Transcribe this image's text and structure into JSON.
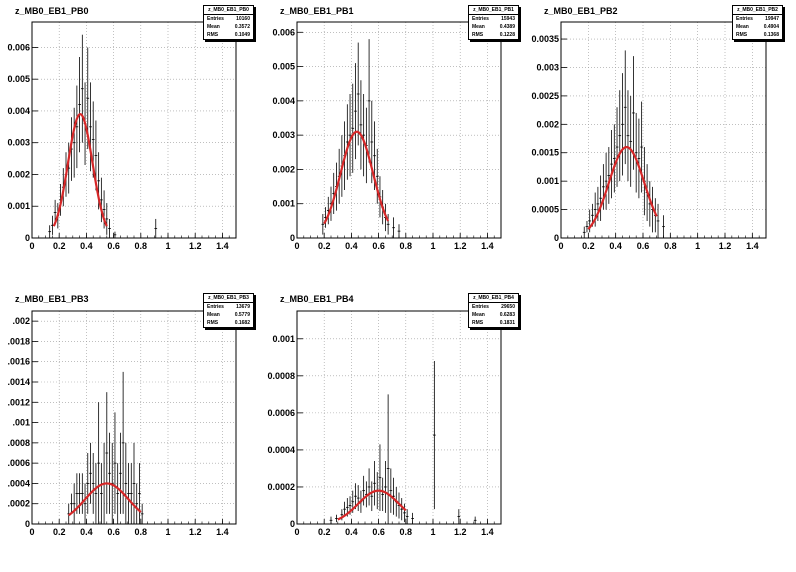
{
  "chart_data": [
    {
      "type": "histogram",
      "title": "z_MB0_EB1_PB0",
      "stats": {
        "name": "z_MB0_EB1_PB0",
        "entries": "10160",
        "mean": "0.3572",
        "rms": "0.1049"
      },
      "xlim": [
        0,
        1.5
      ],
      "ylim": [
        0,
        0.0068
      ],
      "xticks": [
        0,
        0.2,
        0.4,
        0.6,
        0.8,
        1,
        1.2,
        1.4
      ],
      "xticklabels": [
        "0",
        "0.2",
        "0.4",
        "0.6",
        "0.8",
        "1",
        "1.2",
        "1.4"
      ],
      "yticks": [
        0.001,
        0.002,
        0.003,
        0.004,
        0.005,
        0.006
      ],
      "yticklabels": [
        "0.001",
        "0.002",
        "0.003",
        "0.004",
        "0.005",
        "0.006"
      ],
      "bins": [
        [
          0.13,
          0.0002
        ],
        [
          0.15,
          0.0004
        ],
        [
          0.17,
          0.0008
        ],
        [
          0.19,
          0.0007
        ],
        [
          0.21,
          0.0012
        ],
        [
          0.23,
          0.0016
        ],
        [
          0.25,
          0.002
        ],
        [
          0.27,
          0.0022
        ],
        [
          0.29,
          0.0028
        ],
        [
          0.31,
          0.003
        ],
        [
          0.33,
          0.0035
        ],
        [
          0.35,
          0.0042
        ],
        [
          0.37,
          0.0047
        ],
        [
          0.39,
          0.0036
        ],
        [
          0.41,
          0.0044
        ],
        [
          0.43,
          0.0035
        ],
        [
          0.45,
          0.0031
        ],
        [
          0.47,
          0.0026
        ],
        [
          0.49,
          0.0018
        ],
        [
          0.51,
          0.0012
        ],
        [
          0.53,
          0.0009
        ],
        [
          0.55,
          0.0006
        ],
        [
          0.57,
          0.0003
        ],
        [
          0.61,
          0.0001
        ],
        [
          0.91,
          0.0003
        ]
      ],
      "errors": [
        0.0002,
        0.0003,
        0.0004,
        0.0004,
        0.0005,
        0.0006,
        0.0007,
        0.0008,
        0.001,
        0.0011,
        0.0013,
        0.0015,
        0.0017,
        0.0013,
        0.0016,
        0.0014,
        0.0012,
        0.0011,
        0.0009,
        0.0007,
        0.0006,
        0.0005,
        0.0003,
        0.0001,
        0.0003
      ],
      "fit": {
        "amp": 0.0039,
        "mean": 0.355,
        "sigma": 0.09,
        "xmin": 0.16,
        "xmax": 0.55
      }
    },
    {
      "type": "histogram",
      "title": "z_MB0_EB1_PB1",
      "stats": {
        "name": "z_MB0_EB1_PB1",
        "entries": "15943",
        "mean": "0.4389",
        "rms": "0.1228"
      },
      "xlim": [
        0,
        1.5
      ],
      "ylim": [
        0,
        0.0063
      ],
      "xticks": [
        0,
        0.2,
        0.4,
        0.6,
        0.8,
        1,
        1.2,
        1.4
      ],
      "xticklabels": [
        "0",
        "0.2",
        "0.4",
        "0.6",
        "0.8",
        "1",
        "1.2",
        "1.4"
      ],
      "yticks": [
        0.001,
        0.002,
        0.003,
        0.004,
        0.005,
        0.006
      ],
      "yticklabels": [
        "0.001",
        "0.002",
        "0.003",
        "0.004",
        "0.005",
        "0.006"
      ],
      "bins": [
        [
          0.19,
          0.0004
        ],
        [
          0.21,
          0.0006
        ],
        [
          0.23,
          0.0008
        ],
        [
          0.25,
          0.001
        ],
        [
          0.27,
          0.0013
        ],
        [
          0.29,
          0.0015
        ],
        [
          0.31,
          0.0018
        ],
        [
          0.33,
          0.0021
        ],
        [
          0.35,
          0.0024
        ],
        [
          0.37,
          0.0028
        ],
        [
          0.39,
          0.003
        ],
        [
          0.41,
          0.0032
        ],
        [
          0.43,
          0.0037
        ],
        [
          0.45,
          0.0042
        ],
        [
          0.47,
          0.0033
        ],
        [
          0.49,
          0.003
        ],
        [
          0.51,
          0.0027
        ],
        [
          0.53,
          0.004
        ],
        [
          0.55,
          0.0028
        ],
        [
          0.57,
          0.0024
        ],
        [
          0.59,
          0.0018
        ],
        [
          0.61,
          0.0012
        ],
        [
          0.63,
          0.0009
        ],
        [
          0.65,
          0.0006
        ],
        [
          0.67,
          0.0004
        ],
        [
          0.71,
          0.0003
        ],
        [
          0.75,
          0.0002
        ]
      ],
      "errors": [
        0.0003,
        0.0003,
        0.0004,
        0.0005,
        0.0006,
        0.0007,
        0.0008,
        0.0009,
        0.001,
        0.0011,
        0.0012,
        0.0013,
        0.0014,
        0.0015,
        0.0013,
        0.0012,
        0.0011,
        0.0018,
        0.0012,
        0.001,
        0.0008,
        0.0006,
        0.0005,
        0.0004,
        0.0003,
        0.0003,
        0.0002
      ],
      "fit": {
        "amp": 0.0031,
        "mean": 0.44,
        "sigma": 0.12,
        "xmin": 0.2,
        "xmax": 0.67
      }
    },
    {
      "type": "histogram",
      "title": "z_MB0_EB1_PB2",
      "stats": {
        "name": "z_MB0_EB1_PB2",
        "entries": "19947",
        "mean": "0.4904",
        "rms": "0.1368"
      },
      "xlim": [
        0,
        1.5
      ],
      "ylim": [
        0,
        0.0038
      ],
      "xticks": [
        0,
        0.2,
        0.4,
        0.6,
        0.8,
        1,
        1.2,
        1.4
      ],
      "xticklabels": [
        "0",
        "0.2",
        "0.4",
        "0.6",
        "0.8",
        "1",
        "1.2",
        "1.4"
      ],
      "yticks": [
        0.0005,
        0.001,
        0.0015,
        0.002,
        0.0025,
        0.003,
        0.0035
      ],
      "yticklabels": [
        "0.0005",
        "0.001",
        "0.0015",
        "0.002",
        "0.0025",
        "0.003",
        "0.0035"
      ],
      "bins": [
        [
          0.17,
          0.0001
        ],
        [
          0.19,
          0.0002
        ],
        [
          0.21,
          0.0003
        ],
        [
          0.23,
          0.0004
        ],
        [
          0.25,
          0.0005
        ],
        [
          0.27,
          0.0006
        ],
        [
          0.29,
          0.0007
        ],
        [
          0.31,
          0.0009
        ],
        [
          0.33,
          0.001
        ],
        [
          0.35,
          0.0011
        ],
        [
          0.37,
          0.0013
        ],
        [
          0.39,
          0.0014
        ],
        [
          0.41,
          0.0016
        ],
        [
          0.43,
          0.0018
        ],
        [
          0.45,
          0.002
        ],
        [
          0.47,
          0.0023
        ],
        [
          0.49,
          0.0018
        ],
        [
          0.51,
          0.0017
        ],
        [
          0.53,
          0.0022
        ],
        [
          0.55,
          0.0015
        ],
        [
          0.57,
          0.0014
        ],
        [
          0.59,
          0.0016
        ],
        [
          0.61,
          0.001
        ],
        [
          0.63,
          0.0008
        ],
        [
          0.65,
          0.0006
        ],
        [
          0.67,
          0.0005
        ],
        [
          0.69,
          0.0004
        ],
        [
          0.71,
          0.0003
        ],
        [
          0.75,
          0.0002
        ]
      ],
      "errors": [
        0.0001,
        0.0001,
        0.0002,
        0.0002,
        0.0003,
        0.0003,
        0.0004,
        0.0004,
        0.0005,
        0.0005,
        0.0006,
        0.0006,
        0.0007,
        0.0008,
        0.0009,
        0.001,
        0.0008,
        0.0008,
        0.001,
        0.0007,
        0.0007,
        0.0008,
        0.0006,
        0.0005,
        0.0004,
        0.0004,
        0.0003,
        0.0003,
        0.0002
      ],
      "fit": {
        "amp": 0.0016,
        "mean": 0.48,
        "sigma": 0.13,
        "xmin": 0.2,
        "xmax": 0.7
      }
    },
    {
      "type": "histogram",
      "title": "z_MB0_EB1_PB3",
      "stats": {
        "name": "z_MB0_EB1_PB3",
        "entries": "13679",
        "mean": "0.5779",
        "rms": "0.1682"
      },
      "xlim": [
        0,
        1.5
      ],
      "ylim": [
        0,
        0.0021
      ],
      "xticks": [
        0,
        0.2,
        0.4,
        0.6,
        0.8,
        1,
        1.2,
        1.4
      ],
      "xticklabels": [
        "0",
        "0.2",
        "0.4",
        "0.6",
        "0.8",
        "1",
        "1.2",
        "1.4"
      ],
      "yticks": [
        0.0002,
        0.0004,
        0.0006,
        0.0008,
        0.001,
        0.0012,
        0.0014,
        0.0016,
        0.0018,
        0.002
      ],
      "yticklabels": [
        ".0002",
        ".0004",
        ".0006",
        ".0008",
        ".001",
        ".0012",
        ".0014",
        ".0016",
        ".0018",
        ".002"
      ],
      "bins": [
        [
          0.27,
          0.0001
        ],
        [
          0.29,
          0.0002
        ],
        [
          0.31,
          0.0002
        ],
        [
          0.33,
          0.0003
        ],
        [
          0.35,
          0.0003
        ],
        [
          0.37,
          0.0003
        ],
        [
          0.39,
          0.0002
        ],
        [
          0.41,
          0.0004
        ],
        [
          0.43,
          0.0005
        ],
        [
          0.45,
          0.0004
        ],
        [
          0.47,
          0.0003
        ],
        [
          0.49,
          0.0006
        ],
        [
          0.51,
          0.0003
        ],
        [
          0.53,
          0.0004
        ],
        [
          0.55,
          0.0007
        ],
        [
          0.57,
          0.0005
        ],
        [
          0.59,
          0.0004
        ],
        [
          0.61,
          0.0006
        ],
        [
          0.63,
          0.0003
        ],
        [
          0.65,
          0.0005
        ],
        [
          0.67,
          0.0008
        ],
        [
          0.69,
          0.0004
        ],
        [
          0.71,
          0.0003
        ],
        [
          0.73,
          0.0003
        ],
        [
          0.75,
          0.0004
        ],
        [
          0.77,
          0.0002
        ],
        [
          0.79,
          0.0003
        ],
        [
          0.81,
          0.0001
        ]
      ],
      "errors": [
        0.0001,
        0.0001,
        0.0002,
        0.0002,
        0.0002,
        0.0002,
        0.0002,
        0.0003,
        0.0003,
        0.0003,
        0.0003,
        0.0006,
        0.0003,
        0.0004,
        0.0006,
        0.0004,
        0.0004,
        0.0005,
        0.0003,
        0.0004,
        0.0007,
        0.0004,
        0.0003,
        0.0003,
        0.0004,
        0.0002,
        0.0003,
        0.0001
      ],
      "fit": {
        "amp": 0.0004,
        "mean": 0.55,
        "sigma": 0.16,
        "xmin": 0.27,
        "xmax": 0.8
      }
    },
    {
      "type": "histogram",
      "title": "z_MB0_EB1_PB4",
      "stats": {
        "name": "z_MB0_EB1_PB4",
        "entries": "29650",
        "mean": "0.6283",
        "rms": "0.1831"
      },
      "xlim": [
        0,
        1.5
      ],
      "ylim": [
        0,
        0.00115
      ],
      "xticks": [
        0,
        0.2,
        0.4,
        0.6,
        0.8,
        1,
        1.2,
        1.4
      ],
      "xticklabels": [
        "0",
        "0.2",
        "0.4",
        "0.6",
        "0.8",
        "1",
        "1.2",
        "1.4"
      ],
      "yticks": [
        0.0002,
        0.0004,
        0.0006,
        0.0008,
        0.001
      ],
      "yticklabels": [
        "0.0002",
        "0.0004",
        "0.0006",
        "0.0008",
        "0.001"
      ],
      "bins": [
        [
          0.25,
          2e-05
        ],
        [
          0.29,
          3e-05
        ],
        [
          0.33,
          5e-05
        ],
        [
          0.35,
          8e-05
        ],
        [
          0.37,
          9e-05
        ],
        [
          0.39,
          0.0001
        ],
        [
          0.41,
          0.00012
        ],
        [
          0.43,
          0.00015
        ],
        [
          0.45,
          0.00014
        ],
        [
          0.47,
          0.00012
        ],
        [
          0.49,
          0.00018
        ],
        [
          0.51,
          0.00016
        ],
        [
          0.53,
          0.0002
        ],
        [
          0.55,
          0.00015
        ],
        [
          0.57,
          0.00022
        ],
        [
          0.59,
          0.00018
        ],
        [
          0.61,
          0.00025
        ],
        [
          0.63,
          0.00016
        ],
        [
          0.65,
          0.0002
        ],
        [
          0.67,
          0.0003
        ],
        [
          0.69,
          0.00018
        ],
        [
          0.71,
          0.00015
        ],
        [
          0.73,
          0.00012
        ],
        [
          0.75,
          0.0001
        ],
        [
          0.77,
          8e-05
        ],
        [
          0.79,
          6e-05
        ],
        [
          0.81,
          4e-05
        ],
        [
          0.85,
          3e-05
        ],
        [
          1.01,
          0.00048
        ],
        [
          1.19,
          4e-05
        ],
        [
          1.31,
          2e-05
        ]
      ],
      "errors": [
        2e-05,
        2e-05,
        3e-05,
        4e-05,
        5e-05,
        5e-05,
        6e-05,
        7e-05,
        7e-05,
        6e-05,
        8e-05,
        7e-05,
        0.0001,
        8e-05,
        0.00012,
        0.0001,
        0.00018,
        9e-05,
        0.00014,
        0.0004,
        0.00012,
        0.0001,
        8e-05,
        7e-05,
        6e-05,
        5e-05,
        4e-05,
        3e-05,
        0.0004,
        4e-05,
        2e-05
      ],
      "fit": {
        "amp": 0.00018,
        "mean": 0.6,
        "sigma": 0.15,
        "xmin": 0.3,
        "xmax": 0.8
      }
    }
  ]
}
